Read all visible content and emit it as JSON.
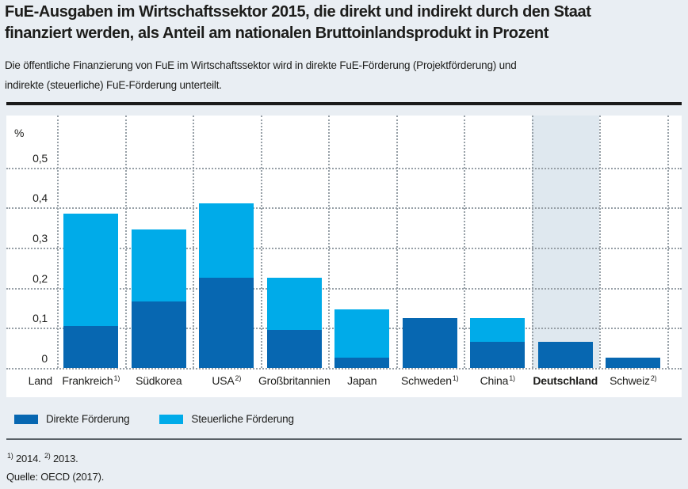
{
  "header": {
    "title_line1": "FuE-Ausgaben im Wirtschaftssektor 2015, die direkt und indirekt durch den Staat",
    "title_line2": "finanziert werden, als Anteil am nationalen Bruttoinlandsprodukt in Prozent",
    "subtitle_line1": "Die öffentliche Finanzierung von FuE im Wirtschaftssektor wird in direkte FuE-Förderung (Projektförderung) und",
    "subtitle_line2": "indirekte (steuerliche) FuE-Förderung unterteilt."
  },
  "chart_data": {
    "type": "bar",
    "stacked": true,
    "title": "FuE-Ausgaben im Wirtschaftssektor 2015, die direkt und indirekt durch den Staat finanziert werden, als Anteil am nationalen Bruttoinlandsprodukt in Prozent",
    "unit_label": "%",
    "x_axis_label": "Land",
    "ylim": [
      0,
      0.55
    ],
    "grid": true,
    "y_tick_labels": [
      "0,5",
      "0,4",
      "0,3",
      "0,2",
      "0,1",
      "0"
    ],
    "categories": [
      {
        "label": "Frankreich",
        "sup": "1)",
        "bold": false
      },
      {
        "label": "Südkorea",
        "sup": "",
        "bold": false
      },
      {
        "label": "USA",
        "sup": "2)",
        "bold": false
      },
      {
        "label": "Großbritannien",
        "sup": "",
        "bold": false
      },
      {
        "label": "Japan",
        "sup": "",
        "bold": false
      },
      {
        "label": "Schweden",
        "sup": "1)",
        "bold": false
      },
      {
        "label": "China",
        "sup": "1)",
        "bold": false
      },
      {
        "label": "Deutschland",
        "sup": "",
        "bold": true
      },
      {
        "label": "Schweiz",
        "sup": "2)",
        "bold": false
      }
    ],
    "series": [
      {
        "name": "Direkte Förderung",
        "color": "#0767b1",
        "values": [
          0.105,
          0.165,
          0.225,
          0.095,
          0.025,
          0.125,
          0.065,
          0.065,
          0.025
        ]
      },
      {
        "name": "Steuerliche Förderung",
        "color": "#00abe9",
        "values": [
          0.28,
          0.18,
          0.185,
          0.13,
          0.12,
          0,
          0.06,
          0,
          0
        ]
      }
    ],
    "totals": [
      0.385,
      0.345,
      0.41,
      0.225,
      0.145,
      0.125,
      0.125,
      0.065,
      0.025
    ],
    "highlighted_category": "Deutschland",
    "highlight_color": "#dfe8ef",
    "legend_position": "bottom"
  },
  "legend": {
    "items": [
      {
        "label": "Direkte Förderung",
        "color": "#0767b1"
      },
      {
        "label": "Steuerliche Förderung",
        "color": "#00abe9"
      }
    ]
  },
  "footnotes": {
    "parts": [
      {
        "sup": "1)"
      },
      {
        "text": " 2014. "
      },
      {
        "sup": "2)"
      },
      {
        "text": " 2013."
      }
    ]
  },
  "source": "Quelle: OECD (2017).",
  "colors": {
    "background": "#e9eef3",
    "panel": "#ffffff",
    "direct_blue": "#0767b1",
    "tax_blue": "#00abe9",
    "text": "#1d1d1b"
  }
}
